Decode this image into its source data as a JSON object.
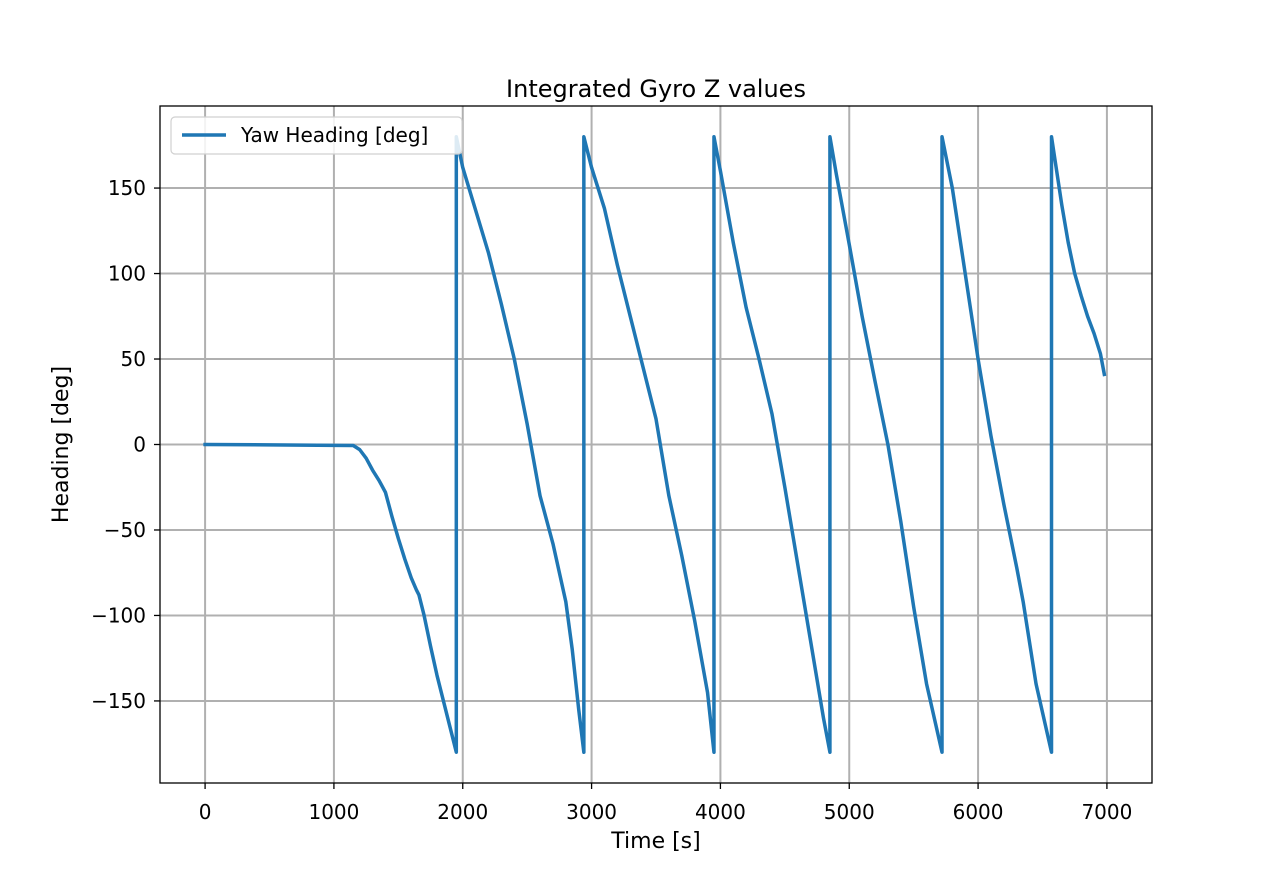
{
  "chart_data": {
    "type": "line",
    "title": "Integrated Gyro Z values",
    "xlabel": "Time [s]",
    "ylabel": "Heading [deg]",
    "xlim": [
      -350,
      7350
    ],
    "ylim": [
      -198,
      198
    ],
    "xticks": [
      0,
      1000,
      2000,
      3000,
      4000,
      5000,
      6000,
      7000
    ],
    "xtick_labels": [
      "0",
      "1000",
      "2000",
      "3000",
      "4000",
      "5000",
      "6000",
      "7000"
    ],
    "yticks": [
      -150,
      -100,
      -50,
      0,
      50,
      100,
      150
    ],
    "ytick_labels": [
      "−150",
      "−100",
      "−50",
      "0",
      "50",
      "100",
      "150"
    ],
    "grid": true,
    "legend": "upper-left",
    "series": [
      {
        "name": "Yaw Heading [deg]",
        "color": "#1f77b4",
        "points": [
          [
            0,
            0
          ],
          [
            500,
            -0.2
          ],
          [
            1000,
            -0.5
          ],
          [
            1150,
            -0.6
          ],
          [
            1200,
            -3
          ],
          [
            1250,
            -8
          ],
          [
            1300,
            -15
          ],
          [
            1350,
            -21
          ],
          [
            1400,
            -28
          ],
          [
            1450,
            -42
          ],
          [
            1500,
            -55
          ],
          [
            1550,
            -67
          ],
          [
            1600,
            -78
          ],
          [
            1640,
            -85
          ],
          [
            1660,
            -88
          ],
          [
            1700,
            -100
          ],
          [
            1750,
            -118
          ],
          [
            1800,
            -135
          ],
          [
            1850,
            -150
          ],
          [
            1900,
            -165
          ],
          [
            1950,
            -180
          ],
          [
            1950,
            180
          ],
          [
            2000,
            162
          ],
          [
            2100,
            137
          ],
          [
            2200,
            112
          ],
          [
            2300,
            82
          ],
          [
            2400,
            50
          ],
          [
            2500,
            12
          ],
          [
            2600,
            -30
          ],
          [
            2700,
            -58
          ],
          [
            2800,
            -92
          ],
          [
            2850,
            -120
          ],
          [
            2900,
            -155
          ],
          [
            2940,
            -180
          ],
          [
            2940,
            180
          ],
          [
            3000,
            162
          ],
          [
            3050,
            150
          ],
          [
            3100,
            138
          ],
          [
            3200,
            105
          ],
          [
            3300,
            75
          ],
          [
            3400,
            45
          ],
          [
            3500,
            15
          ],
          [
            3600,
            -30
          ],
          [
            3700,
            -65
          ],
          [
            3800,
            -103
          ],
          [
            3900,
            -145
          ],
          [
            3950,
            -180
          ],
          [
            3950,
            180
          ],
          [
            4000,
            160
          ],
          [
            4100,
            118
          ],
          [
            4200,
            80
          ],
          [
            4300,
            50
          ],
          [
            4400,
            18
          ],
          [
            4500,
            -25
          ],
          [
            4600,
            -70
          ],
          [
            4700,
            -115
          ],
          [
            4800,
            -160
          ],
          [
            4850,
            -180
          ],
          [
            4850,
            180
          ],
          [
            4900,
            158
          ],
          [
            5000,
            117
          ],
          [
            5100,
            75
          ],
          [
            5200,
            37
          ],
          [
            5300,
            0
          ],
          [
            5400,
            -45
          ],
          [
            5500,
            -95
          ],
          [
            5600,
            -140
          ],
          [
            5720,
            -180
          ],
          [
            5720,
            180
          ],
          [
            5800,
            150
          ],
          [
            5900,
            100
          ],
          [
            6000,
            50
          ],
          [
            6100,
            5
          ],
          [
            6200,
            -35
          ],
          [
            6300,
            -72
          ],
          [
            6350,
            -92
          ],
          [
            6450,
            -140
          ],
          [
            6570,
            -180
          ],
          [
            6570,
            180
          ],
          [
            6650,
            140
          ],
          [
            6700,
            118
          ],
          [
            6750,
            100
          ],
          [
            6800,
            87
          ],
          [
            6850,
            75
          ],
          [
            6900,
            65
          ],
          [
            6950,
            53
          ],
          [
            6980,
            41
          ]
        ]
      }
    ]
  }
}
